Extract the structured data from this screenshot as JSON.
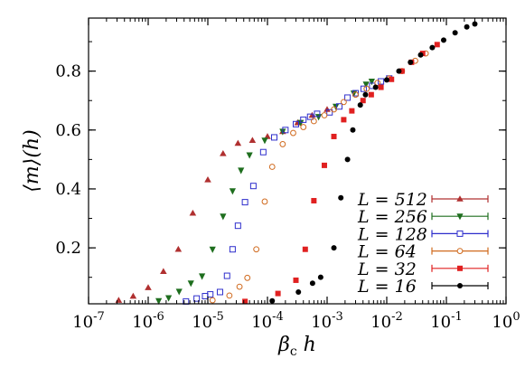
{
  "chart_data": {
    "type": "scatter",
    "xscale": "log",
    "xlim": [
      1e-07,
      1
    ],
    "ylim": [
      0.01,
      0.98
    ],
    "xlabel": "βc h",
    "ylabel": "⟨m⟩(h)",
    "grid": false,
    "legend_position": "bottom-right",
    "x_ticks": [
      {
        "value": 1e-07,
        "label": "10-7"
      },
      {
        "value": 1e-06,
        "label": "10-6"
      },
      {
        "value": 1e-05,
        "label": "10-5"
      },
      {
        "value": 0.0001,
        "label": "10-4"
      },
      {
        "value": 0.001,
        "label": "10-3"
      },
      {
        "value": 0.01,
        "label": "10-2"
      },
      {
        "value": 0.1,
        "label": "10-1"
      },
      {
        "value": 1,
        "label": "100"
      }
    ],
    "y_ticks": [
      {
        "value": 0.2,
        "label": "0.2"
      },
      {
        "value": 0.4,
        "label": "0.4"
      },
      {
        "value": 0.6,
        "label": "0.6"
      },
      {
        "value": 0.8,
        "label": "0.8"
      }
    ],
    "series": [
      {
        "name": "L = 512",
        "color": "#b03030",
        "marker": "triangle-up",
        "x": [
          3.2e-07,
          5.6e-07,
          1e-06,
          1.8e-06,
          3.2e-06,
          5.6e-06,
          1e-05,
          1.8e-05,
          3.2e-05,
          5.6e-05,
          0.0001,
          0.00018,
          0.00032,
          0.00056,
          0.001
        ],
        "y": [
          0.022,
          0.036,
          0.065,
          0.12,
          0.195,
          0.318,
          0.431,
          0.52,
          0.555,
          0.565,
          0.578,
          0.595,
          0.625,
          0.65,
          0.67
        ]
      },
      {
        "name": "L = 256",
        "color": "#1e6e1e",
        "marker": "triangle-down",
        "x": [
          1.5e-06,
          2.2e-06,
          3.3e-06,
          5.2e-06,
          8e-06,
          1.2e-05,
          1.8e-05,
          2.6e-05,
          3.6e-05,
          5e-05,
          9e-05,
          0.00018,
          0.00036,
          0.00072,
          0.0014,
          0.0028,
          0.0045,
          0.0056
        ],
        "y": [
          0.02,
          0.03,
          0.052,
          0.08,
          0.104,
          0.195,
          0.307,
          0.393,
          0.463,
          0.515,
          0.565,
          0.595,
          0.625,
          0.645,
          0.68,
          0.725,
          0.755,
          0.765
        ]
      },
      {
        "name": "L = 128",
        "color": "#2e2ecc",
        "marker": "square-open",
        "x": [
          4.3e-06,
          6.5e-06,
          9e-06,
          1.1e-05,
          1.6e-05,
          2.1e-05,
          2.6e-05,
          3.2e-05,
          4.2e-05,
          5.8e-05,
          8.5e-05,
          0.00013,
          0.0002,
          0.0003,
          0.0004,
          0.00052,
          0.00068,
          0.0011,
          0.0016,
          0.0022,
          0.003,
          0.0041,
          0.0057,
          0.008,
          0.011
        ],
        "y": [
          0.018,
          0.028,
          0.036,
          0.042,
          0.05,
          0.105,
          0.195,
          0.275,
          0.355,
          0.41,
          0.525,
          0.575,
          0.6,
          0.62,
          0.635,
          0.645,
          0.655,
          0.66,
          0.68,
          0.71,
          0.725,
          0.74,
          0.75,
          0.765,
          0.775
        ]
      },
      {
        "name": "L = 64",
        "color": "#d06a1e",
        "marker": "circle-open",
        "x": [
          1.2e-05,
          2.3e-05,
          3.4e-05,
          4.6e-05,
          6.5e-05,
          9e-05,
          0.00012,
          0.00018,
          0.00027,
          0.0004,
          0.0006,
          0.0009,
          0.0013,
          0.0019,
          0.003,
          0.0046,
          0.007,
          0.011,
          0.018,
          0.03,
          0.045
        ],
        "y": [
          0.022,
          0.038,
          0.068,
          0.098,
          0.195,
          0.357,
          0.475,
          0.552,
          0.59,
          0.61,
          0.63,
          0.65,
          0.67,
          0.695,
          0.72,
          0.74,
          0.76,
          0.775,
          0.8,
          0.835,
          0.86
        ]
      },
      {
        "name": "L = 32",
        "color": "#e02020",
        "marker": "square-filled",
        "x": [
          4.2e-05,
          0.00015,
          0.0003,
          0.00043,
          0.0006,
          0.0009,
          0.0013,
          0.0019,
          0.0026,
          0.004,
          0.0055,
          0.008,
          0.012,
          0.018,
          0.026,
          0.04,
          0.07
        ],
        "y": [
          0.018,
          0.045,
          0.09,
          0.195,
          0.36,
          0.48,
          0.578,
          0.635,
          0.665,
          0.7,
          0.72,
          0.745,
          0.772,
          0.8,
          0.83,
          0.86,
          0.89
        ]
      },
      {
        "name": "L = 16",
        "color": "#000000",
        "marker": "circle-filled",
        "x": [
          0.00012,
          0.00033,
          0.00057,
          0.00078,
          0.0013,
          0.0017,
          0.0022,
          0.0027,
          0.0036,
          0.0044,
          0.0065,
          0.01,
          0.016,
          0.025,
          0.037,
          0.058,
          0.09,
          0.14,
          0.22,
          0.3
        ],
        "y": [
          0.02,
          0.05,
          0.08,
          0.1,
          0.2,
          0.37,
          0.5,
          0.6,
          0.685,
          0.72,
          0.745,
          0.77,
          0.8,
          0.83,
          0.855,
          0.88,
          0.905,
          0.93,
          0.95,
          0.96
        ]
      }
    ]
  }
}
